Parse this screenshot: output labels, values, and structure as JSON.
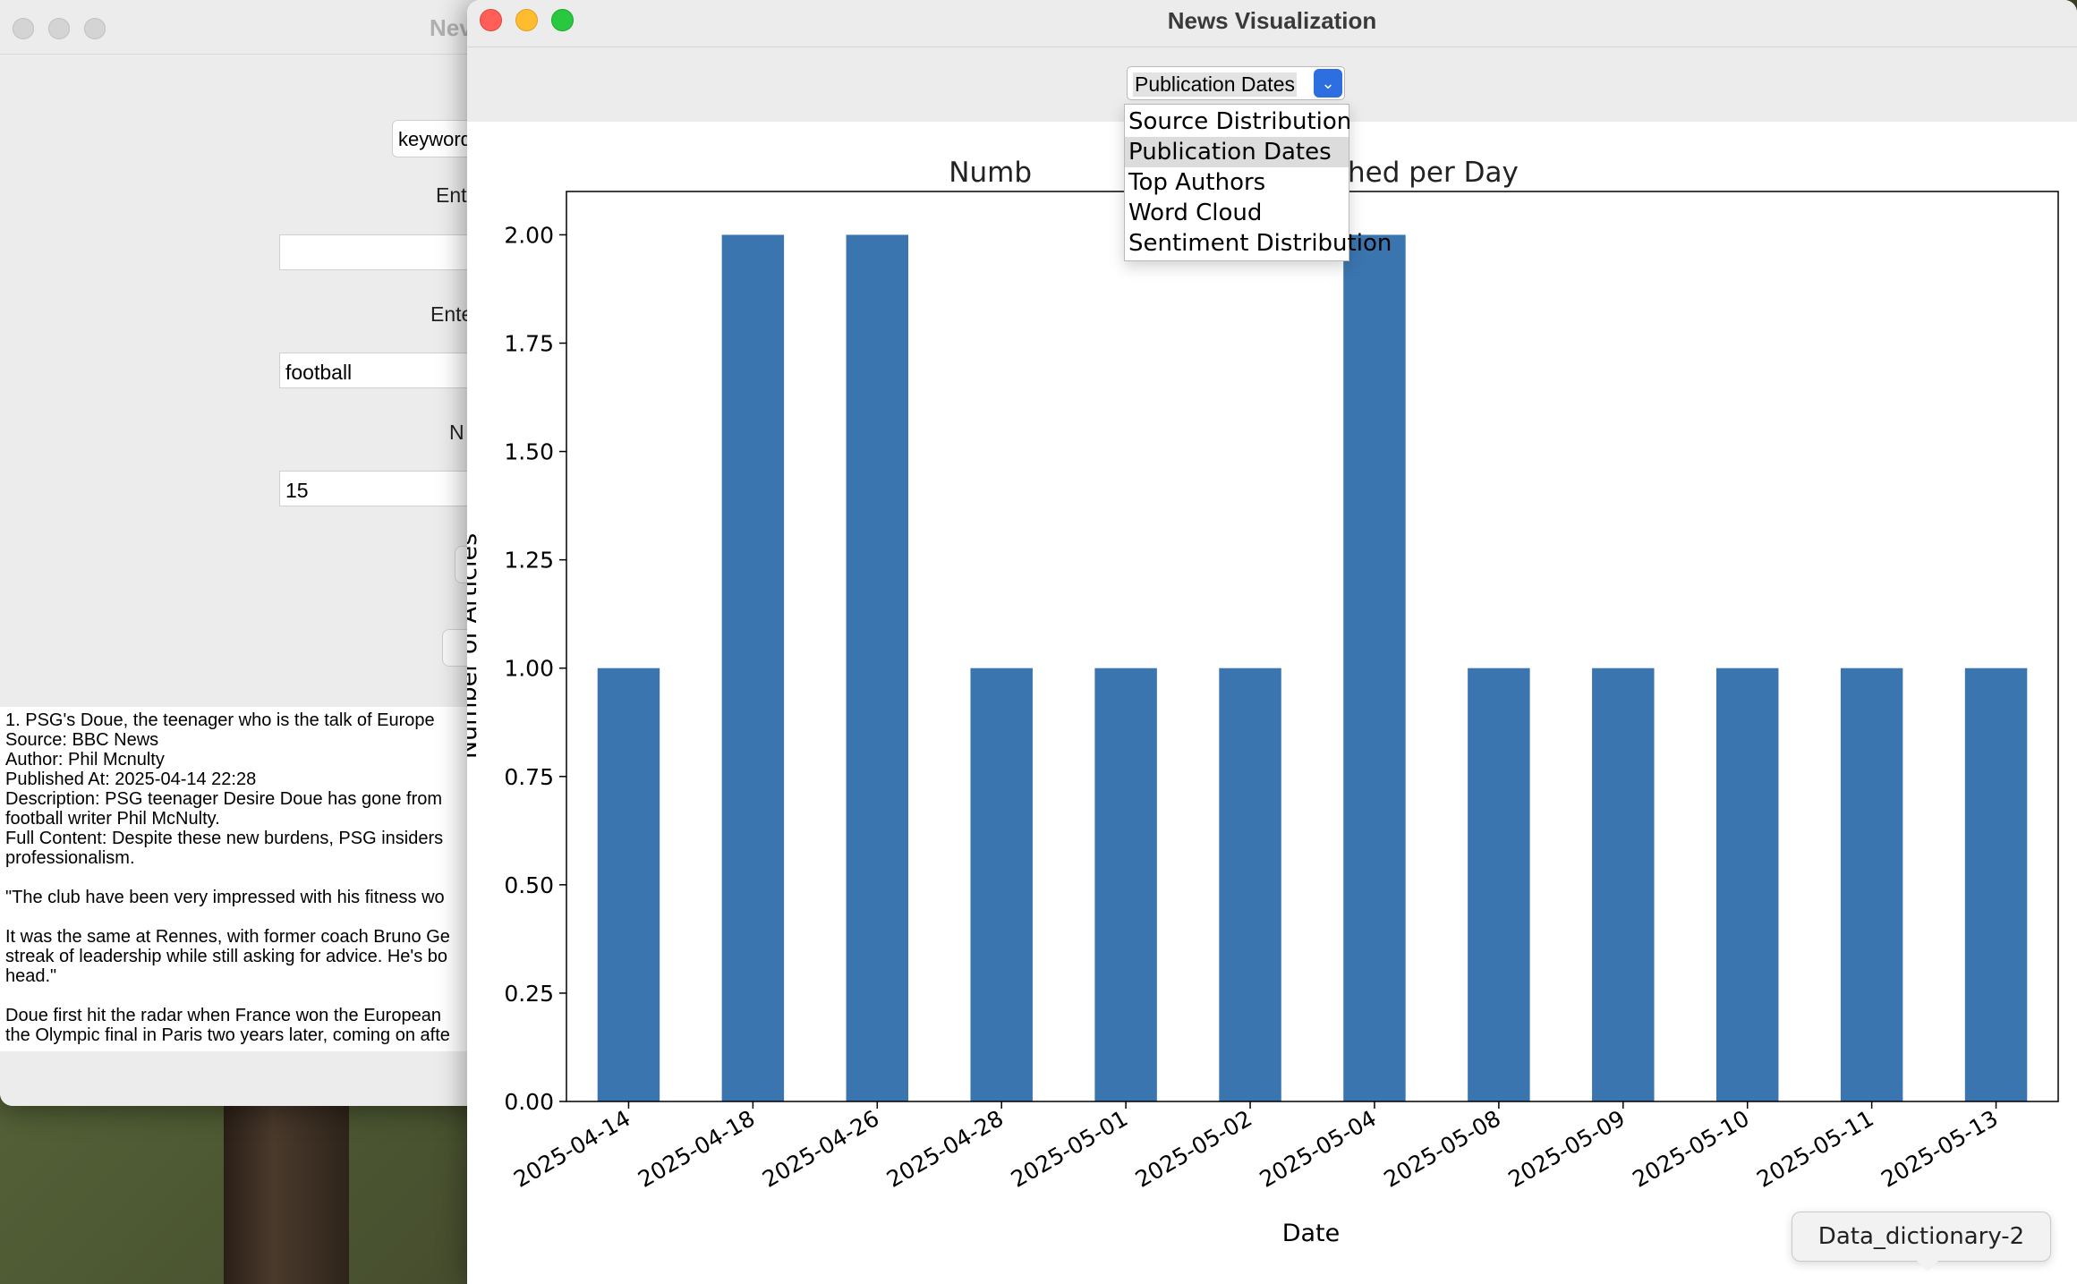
{
  "back_window": {
    "title": "Nev",
    "keyword_combo": "keyword",
    "label_1": "Ent",
    "label_2": "Ente",
    "keyword_value": "football",
    "label_3": "N",
    "count_value": "15",
    "results_lines": [
      "1. PSG's Doue, the teenager who is the talk of Europe",
      "Source: BBC News",
      "Author: Phil Mcnulty",
      "Published At: 2025-04-14 22:28",
      "Description: PSG teenager Desire Doue has gone from",
      "football writer Phil McNulty.",
      "Full Content: Despite these new burdens, PSG insiders",
      "professionalism.",
      "",
      "\"The club have been very impressed with his fitness wo",
      "",
      "It was the same at Rennes, with former coach Bruno Ge",
      "streak of leadership while still asking for advice. He's bo",
      "head.\"",
      "",
      "Doue first hit the radar when France won the European",
      "the Olympic final in Paris two years later, coming on afte"
    ]
  },
  "front_window": {
    "title": "News Visualization",
    "combo": {
      "selected": "Publication Dates",
      "arrow_icon": "chevron-down-icon",
      "options": [
        "Source Distribution",
        "Publication Dates",
        "Top Authors",
        "Word Cloud",
        "Sentiment Distribution"
      ],
      "selected_index": 1
    }
  },
  "tooltip": "Data_dictionary-2",
  "colors": {
    "bar": "#3b75af",
    "close": "#ff5f57",
    "minimize": "#febc2e",
    "zoom": "#28c840",
    "combo_accent": "#2d6fe0"
  },
  "chart_data": {
    "type": "bar",
    "title_visible_left": "Numb",
    "title_visible_right": "hed per Day",
    "xlabel": "Date",
    "ylabel_visible": "Number of Articles",
    "categories": [
      "2025-04-14",
      "2025-04-18",
      "2025-04-26",
      "2025-04-28",
      "2025-05-01",
      "2025-05-02",
      "2025-05-04",
      "2025-05-08",
      "2025-05-09",
      "2025-05-10",
      "2025-05-11",
      "2025-05-13"
    ],
    "values": [
      1,
      2,
      2,
      1,
      1,
      1,
      2,
      1,
      1,
      1,
      1,
      1
    ],
    "ylim": [
      0,
      2.1
    ],
    "yticks": [
      "0.00",
      "0.25",
      "0.50",
      "0.75",
      "1.00",
      "1.25",
      "1.50",
      "1.75",
      "2.00"
    ],
    "ytick_values": [
      0,
      0.25,
      0.5,
      0.75,
      1.0,
      1.25,
      1.5,
      1.75,
      2.0
    ],
    "grid": false
  }
}
